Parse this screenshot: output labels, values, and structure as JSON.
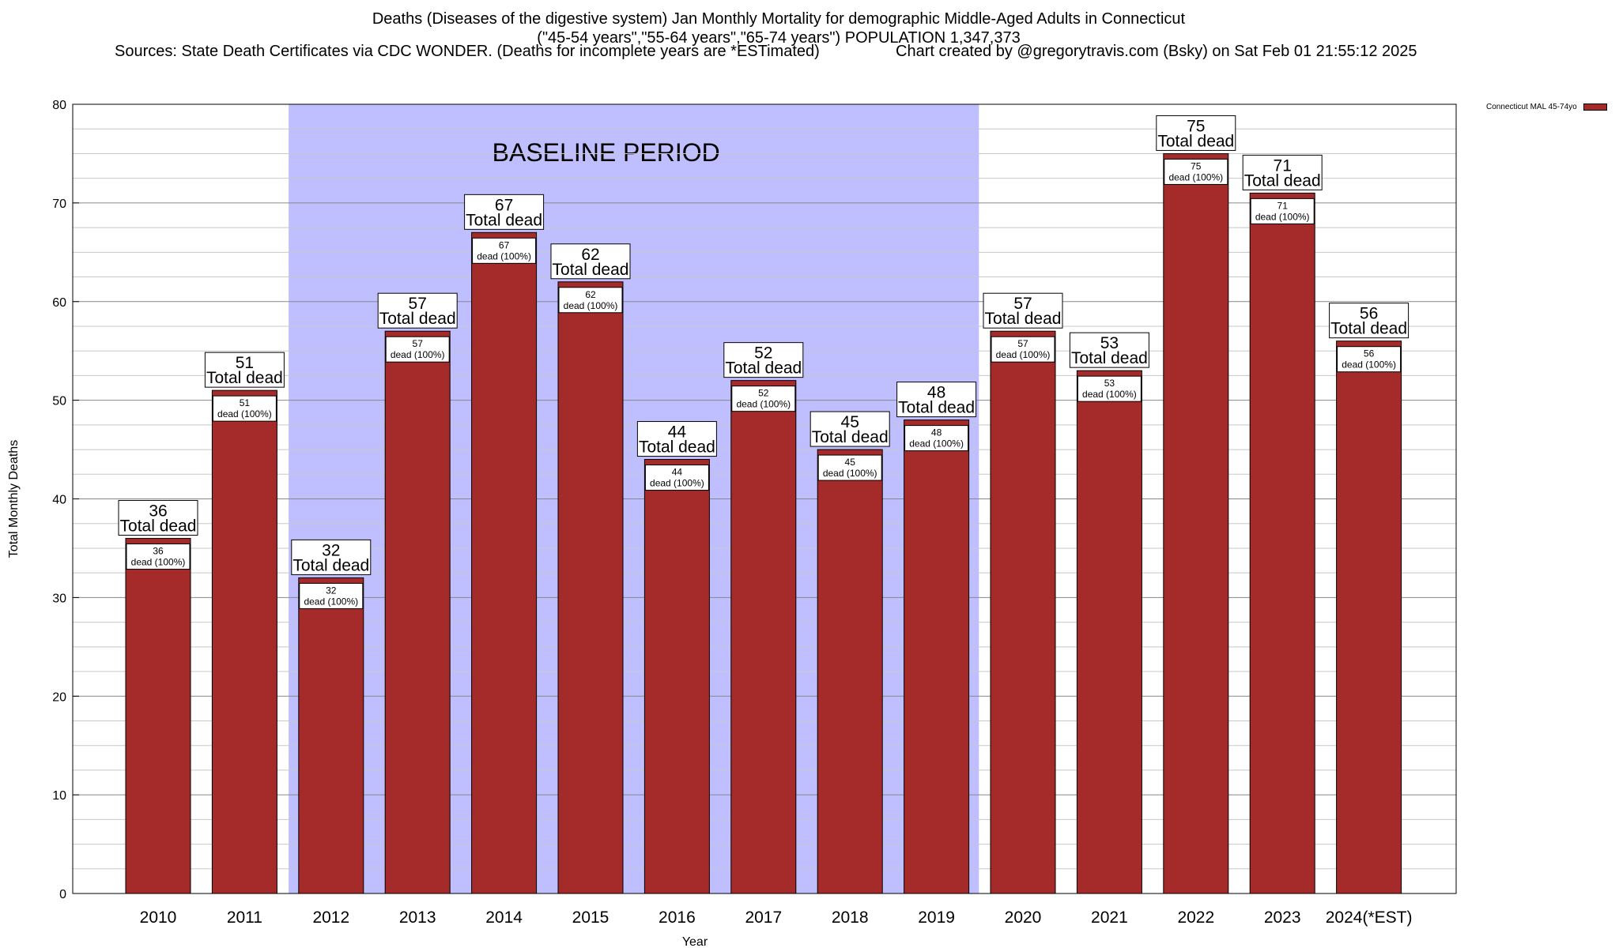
{
  "chart_data": {
    "type": "bar",
    "title_lines": [
      "Deaths (Diseases of the digestive system) Jan Monthly Mortality for demographic Middle-Aged Adults in Connecticut",
      "(\"45-54 years\",\"55-64 years\",\"65-74 years\") POPULATION 1,347,373"
    ],
    "sources": "Sources: State Death Certificates via CDC WONDER. (Deaths for incomplete years are *ESTimated)",
    "credit": "Chart created by @gregorytravis.com (Bsky) on Sat Feb 01 21:55:12 2025",
    "xlabel": "Year",
    "ylabel": "Total Monthly Deaths",
    "ylim": [
      0,
      80
    ],
    "yticks": [
      0,
      10,
      20,
      30,
      40,
      50,
      60,
      70,
      80
    ],
    "categories": [
      "2010",
      "2011",
      "2012",
      "2013",
      "2014",
      "2015",
      "2016",
      "2017",
      "2018",
      "2019",
      "2020",
      "2021",
      "2022",
      "2023",
      "2024(*EST)"
    ],
    "series": [
      {
        "name": "Connecticut MAL 45-74yo",
        "values": [
          36,
          51,
          32,
          57,
          67,
          62,
          44,
          52,
          45,
          48,
          57,
          53,
          75,
          71,
          56
        ]
      }
    ],
    "baseline": {
      "label": "BASELINE PERIOD",
      "from": "2012",
      "to": "2019"
    },
    "total_label": "Total dead",
    "inner_label": "dead (100%)",
    "colors": {
      "bar": "#a52a2a",
      "baseline": "#bfbfff",
      "grid": "#c8c8c8"
    }
  }
}
